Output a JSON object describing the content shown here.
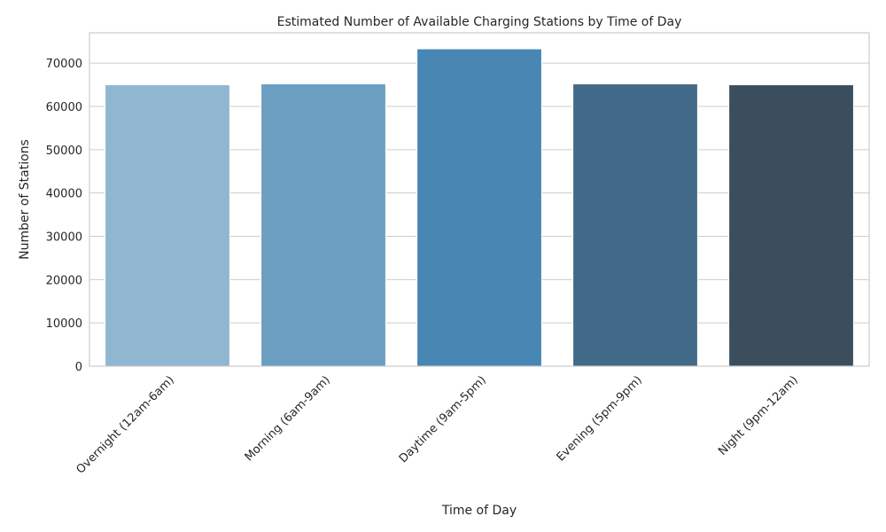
{
  "chart_data": {
    "type": "bar",
    "title": "Estimated Number of Available Charging Stations by Time of Day",
    "xlabel": "Time of Day",
    "ylabel": "Number of Stations",
    "categories": [
      "Overnight (12am-6am)",
      "Morning (6am-9am)",
      "Daytime (9am-5pm)",
      "Evening (5pm-9pm)",
      "Night (9pm-12am)"
    ],
    "values": [
      65000,
      65200,
      73300,
      65200,
      65000
    ],
    "yticks": [
      0,
      10000,
      20000,
      30000,
      40000,
      50000,
      60000,
      70000
    ],
    "ylim": [
      0,
      77000
    ],
    "grid": true,
    "colors": [
      "#90b6d0",
      "#6b9ec0",
      "#4886b3",
      "#426987",
      "#3b4e5e"
    ]
  }
}
